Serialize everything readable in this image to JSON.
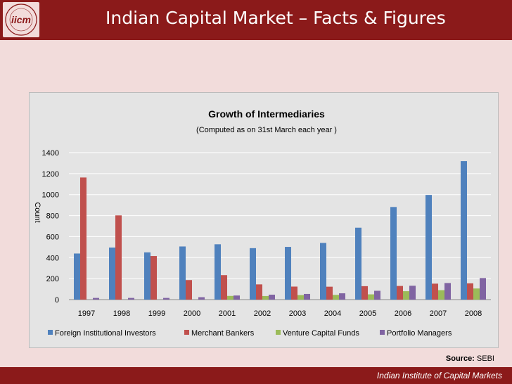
{
  "slide": {
    "title": "Indian Capital Market – Facts & Figures",
    "logo_text": "iicm",
    "source_label": "Source:",
    "source_value": "SEBI",
    "footer": "Indian Institute of Capital Markets"
  },
  "colors": {
    "header": "#8b1a1a",
    "background": "#f2dcdb",
    "panel": "#e4e4e4"
  },
  "chart_data": {
    "type": "bar",
    "title": "Growth of Intermediaries",
    "subtitle": "(Computed as on 31st March each year )",
    "ylabel": "Count",
    "xlabel": "",
    "ylim": [
      0,
      1400
    ],
    "yticks": [
      0,
      200,
      400,
      600,
      800,
      1000,
      1200,
      1400
    ],
    "grid": true,
    "legend_position": "bottom",
    "categories": [
      "1997",
      "1998",
      "1999",
      "2000",
      "2001",
      "2002",
      "2003",
      "2004",
      "2005",
      "2006",
      "2007",
      "2008"
    ],
    "series": [
      {
        "name": "Foreign Institutional  Investors",
        "color": "#4f81bd",
        "values": [
          439,
          496,
          450,
          506,
          527,
          490,
          502,
          540,
          685,
          882,
          997,
          1319
        ]
      },
      {
        "name": "Merchant Bankers",
        "color": "#c0504d",
        "values": [
          1163,
          802,
          415,
          186,
          233,
          145,
          124,
          123,
          128,
          130,
          152,
          155
        ]
      },
      {
        "name": "Venture Capital Funds",
        "color": "#9bbb59",
        "values": [
          0,
          0,
          0,
          0,
          35,
          34,
          43,
          45,
          50,
          80,
          90,
          106
        ]
      },
      {
        "name": "Portfolio Managers",
        "color": "#8064a2",
        "values": [
          16,
          16,
          16,
          23,
          39,
          47,
          54,
          60,
          84,
          132,
          158,
          205
        ]
      }
    ]
  }
}
